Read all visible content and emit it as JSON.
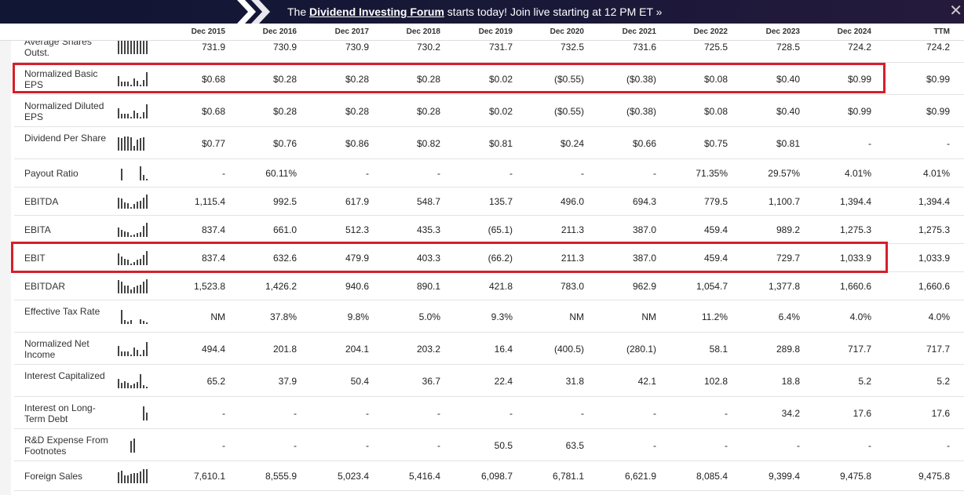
{
  "banner": {
    "prefix": "The ",
    "link": "Dividend Investing Forum",
    "suffix": " starts today! Join live starting at 12 PM ET »",
    "close": "✕"
  },
  "columns": [
    "Dec 2015",
    "Dec 2016",
    "Dec 2017",
    "Dec 2018",
    "Dec 2019",
    "Dec 2020",
    "Dec 2021",
    "Dec 2022",
    "Dec 2023",
    "Dec 2024",
    "TTM"
  ],
  "accent": "#d61f2a",
  "rows": [
    {
      "label": "Average Shares Outst.",
      "values": [
        "731.9",
        "730.9",
        "730.9",
        "730.2",
        "731.7",
        "732.5",
        "731.6",
        "725.5",
        "728.5",
        "724.2",
        "724.2"
      ]
    },
    {
      "label": "Normalized Basic EPS",
      "highlighted": true,
      "values": [
        "$0.68",
        "$0.28",
        "$0.28",
        "$0.28",
        "$0.02",
        "($0.55)",
        "($0.38)",
        "$0.08",
        "$0.40",
        "$0.99",
        "$0.99"
      ]
    },
    {
      "label": "Normalized Diluted EPS",
      "values": [
        "$0.68",
        "$0.28",
        "$0.28",
        "$0.28",
        "$0.02",
        "($0.55)",
        "($0.38)",
        "$0.08",
        "$0.40",
        "$0.99",
        "$0.99"
      ]
    },
    {
      "label": "Dividend Per Share",
      "values": [
        "$0.77",
        "$0.76",
        "$0.86",
        "$0.82",
        "$0.81",
        "$0.24",
        "$0.66",
        "$0.75",
        "$0.81",
        "-",
        "-"
      ]
    },
    {
      "label": "Payout Ratio",
      "values": [
        "-",
        "60.11%",
        "-",
        "-",
        "-",
        "-",
        "-",
        "71.35%",
        "29.57%",
        "4.01%",
        "4.01%"
      ]
    },
    {
      "label": "EBITDA",
      "values": [
        "1,115.4",
        "992.5",
        "617.9",
        "548.7",
        "135.7",
        "496.0",
        "694.3",
        "779.5",
        "1,100.7",
        "1,394.4",
        "1,394.4"
      ]
    },
    {
      "label": "EBITA",
      "values": [
        "837.4",
        "661.0",
        "512.3",
        "435.3",
        "(65.1)",
        "211.3",
        "387.0",
        "459.4",
        "989.2",
        "1,275.3",
        "1,275.3"
      ]
    },
    {
      "label": "EBIT",
      "highlighted": true,
      "values": [
        "837.4",
        "632.6",
        "479.9",
        "403.3",
        "(66.2)",
        "211.3",
        "387.0",
        "459.4",
        "729.7",
        "1,033.9",
        "1,033.9"
      ]
    },
    {
      "label": "EBITDAR",
      "values": [
        "1,523.8",
        "1,426.2",
        "940.6",
        "890.1",
        "421.8",
        "783.0",
        "962.9",
        "1,054.7",
        "1,377.8",
        "1,660.6",
        "1,660.6"
      ]
    },
    {
      "label": "Effective Tax Rate",
      "values": [
        "NM",
        "37.8%",
        "9.8%",
        "5.0%",
        "9.3%",
        "NM",
        "NM",
        "11.2%",
        "6.4%",
        "4.0%",
        "4.0%"
      ]
    },
    {
      "label": "Normalized Net Income",
      "values": [
        "494.4",
        "201.8",
        "204.1",
        "203.2",
        "16.4",
        "(400.5)",
        "(280.1)",
        "58.1",
        "289.8",
        "717.7",
        "717.7"
      ]
    },
    {
      "label": "Interest Capitalized",
      "values": [
        "65.2",
        "37.9",
        "50.4",
        "36.7",
        "22.4",
        "31.8",
        "42.1",
        "102.8",
        "18.8",
        "5.2",
        "5.2"
      ]
    },
    {
      "label": "Interest on Long-Term Debt",
      "values": [
        "-",
        "-",
        "-",
        "-",
        "-",
        "-",
        "-",
        "-",
        "34.2",
        "17.6",
        "17.6"
      ]
    },
    {
      "label": "R&D Expense From Footnotes",
      "values": [
        "-",
        "-",
        "-",
        "-",
        "50.5",
        "63.5",
        "-",
        "-",
        "-",
        "-",
        "-"
      ]
    },
    {
      "label": "Foreign Sales",
      "values": [
        "7,610.1",
        "8,555.9",
        "5,023.4",
        "5,416.4",
        "6,098.7",
        "6,781.1",
        "6,621.9",
        "8,085.4",
        "9,399.4",
        "9,475.8",
        "9,475.8"
      ]
    }
  ]
}
